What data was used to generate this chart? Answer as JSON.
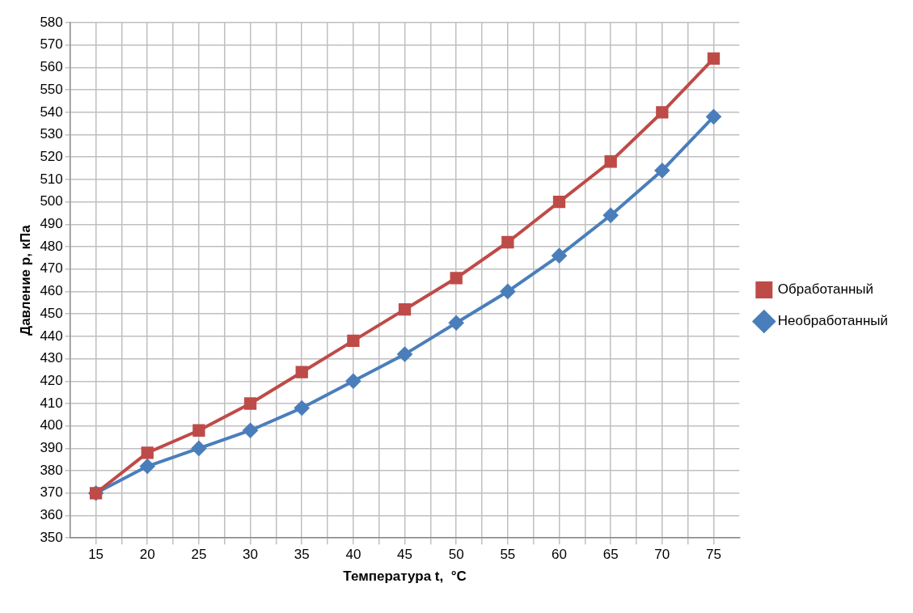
{
  "chart_data": {
    "type": "line",
    "xlabel": "Температура t,  °C",
    "ylabel": "Давление p, кПа",
    "x": [
      15,
      20,
      25,
      30,
      35,
      40,
      45,
      50,
      55,
      60,
      65,
      70,
      75
    ],
    "xlim": [
      12.5,
      77.5
    ],
    "xticks": [
      15,
      {
        "value": 17.5,
        "label": null
      },
      20,
      {
        "value": 22.5,
        "label": null
      },
      25,
      {
        "value": 27.5,
        "label": null
      },
      30,
      {
        "value": 32.5,
        "label": null
      },
      35,
      {
        "value": 37.5,
        "label": null
      },
      40,
      {
        "value": 42.5,
        "label": null
      },
      45,
      {
        "value": 47.5,
        "label": null
      },
      50,
      {
        "value": 52.5,
        "label": null
      },
      55,
      {
        "value": 57.5,
        "label": null
      },
      60,
      {
        "value": 62.5,
        "label": null
      },
      65,
      {
        "value": 67.5,
        "label": null
      },
      70,
      {
        "value": 72.5,
        "label": null
      },
      75
    ],
    "ylim": [
      350,
      580
    ],
    "yticks": [
      350,
      360,
      370,
      380,
      390,
      400,
      410,
      420,
      430,
      440,
      450,
      460,
      470,
      480,
      490,
      500,
      510,
      520,
      530,
      540,
      550,
      560,
      570,
      580
    ],
    "grid": true,
    "legend": "right",
    "line_style": "solid",
    "series": [
      {
        "name": "Необработанный",
        "color": "#4a7ebb",
        "marker": "diamond",
        "values": [
          370,
          382,
          390,
          398,
          408,
          420,
          432,
          446,
          460,
          476,
          494,
          514,
          538
        ]
      },
      {
        "name": "Обработанный",
        "color": "#be4b48",
        "marker": "square",
        "values": [
          370,
          388,
          398,
          410,
          424,
          438,
          452,
          466,
          482,
          500,
          518,
          540,
          564
        ]
      }
    ]
  }
}
